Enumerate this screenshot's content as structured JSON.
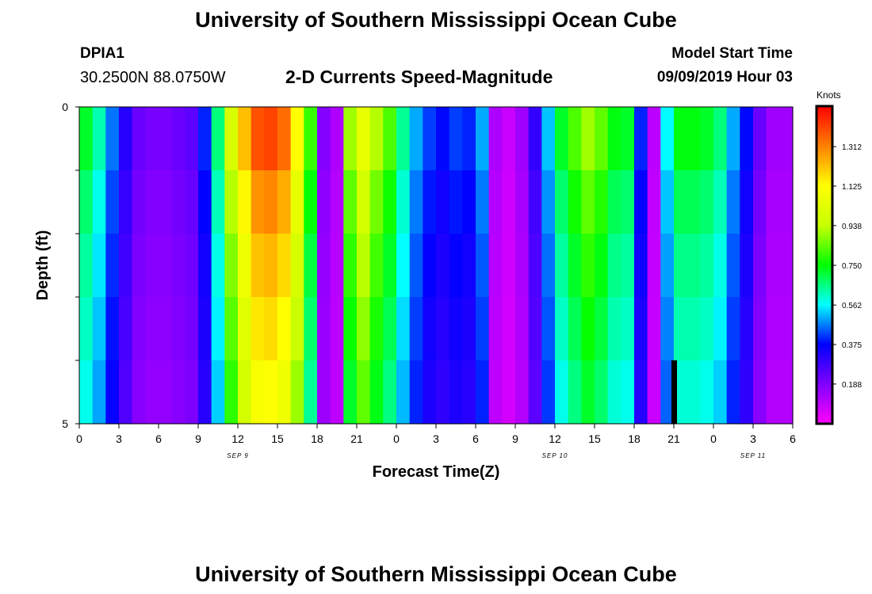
{
  "header": {
    "title": "University of Southern Mississippi Ocean Cube",
    "station_id": "DPIA1",
    "coordinates": "30.2500N 88.0750W",
    "subtitle": "2-D Currents Speed-Magnitude",
    "model_start_label": "Model Start Time",
    "model_start_value": "09/09/2019 Hour 03"
  },
  "footer": {
    "title": "University of Southern Mississippi Ocean Cube"
  },
  "chart_data": {
    "type": "heatmap",
    "title": "2-D Currents Speed-Magnitude",
    "xlabel": "Forecast Time(Z)",
    "ylabel": "Depth (ft)",
    "ylim": [
      0,
      5
    ],
    "y_ticks": [
      "0",
      "5"
    ],
    "x_tick_labels": [
      "0",
      "3",
      "6",
      "9",
      "12",
      "15",
      "18",
      "21",
      "0",
      "3",
      "6",
      "9",
      "12",
      "15",
      "18",
      "21",
      "0",
      "3",
      "6"
    ],
    "date_labels": [
      {
        "text": "SEP 9",
        "at_hour": 12
      },
      {
        "text": "SEP 10",
        "at_hour": 36
      },
      {
        "text": "SEP 11",
        "at_hour": 51
      }
    ],
    "x_range_hours": [
      0,
      54
    ],
    "depth_layers": 5,
    "colorbar": {
      "units": "Knots",
      "min": 0,
      "max": 1.5,
      "tick_values": [
        "1.312",
        "1.125",
        "0.938",
        "0.750",
        "0.562",
        "0.375",
        "0.188"
      ],
      "colors": [
        "#ff00ff",
        "#8000ff",
        "#0000ff",
        "#00ffff",
        "#00ff00",
        "#c8ff00",
        "#ffff00",
        "#ff8000",
        "#ff0000"
      ]
    },
    "surface_speed_by_hour": [
      0.72,
      0.62,
      0.46,
      0.32,
      0.22,
      0.2,
      0.2,
      0.22,
      0.24,
      0.4,
      0.66,
      0.99,
      1.22,
      1.38,
      1.4,
      1.34,
      1.12,
      0.8,
      0.18,
      0.12,
      0.9,
      1.05,
      0.92,
      0.82,
      0.64,
      0.5,
      0.42,
      0.38,
      0.42,
      0.4,
      0.5,
      0.12,
      0.08,
      0.14,
      0.3,
      0.52,
      0.72,
      0.82,
      0.9,
      0.84,
      0.74,
      0.72,
      0.4,
      0.1,
      0.56,
      0.74,
      0.74,
      0.72,
      0.66,
      0.5,
      0.38,
      0.22,
      0.14,
      0.14,
      0.14
    ],
    "depth_factors": [
      1.0,
      0.93,
      0.88,
      0.84,
      0.8,
      0.74
    ],
    "missing": [
      {
        "hour": 21,
        "day_offset": 1,
        "layer": 5
      }
    ]
  }
}
